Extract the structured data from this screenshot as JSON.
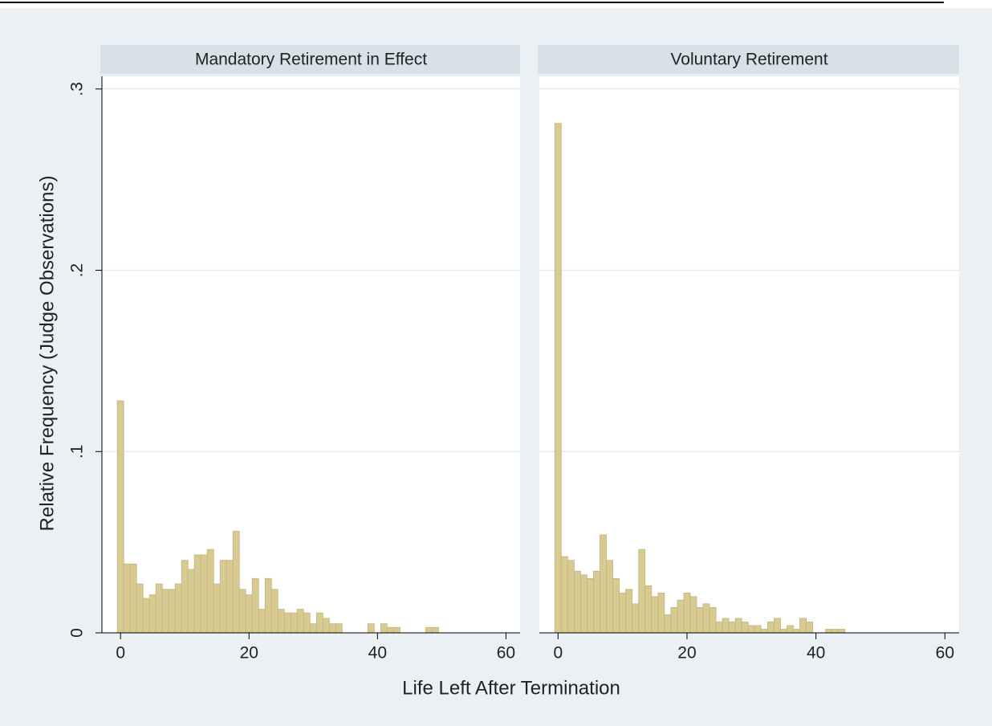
{
  "axis_titles": {
    "x": "Life Left After Termination",
    "y": "Relative Frequency (Judge Observations)"
  },
  "chart_data": [
    {
      "type": "histogram",
      "title": "Mandatory Retirement in Effect",
      "bins": [
        -0.5,
        0.5,
        1.5,
        2.5,
        3.5,
        4.5,
        5.5,
        6.5,
        7.5,
        8.5,
        9.5,
        10.5,
        11.5,
        12.5,
        13.5,
        14.5,
        15.5,
        16.5,
        17.5,
        18.5,
        19.5,
        20.5,
        21.5,
        22.5,
        23.5,
        24.5,
        25.5,
        26.5,
        27.5,
        28.5,
        29.5,
        30.5,
        31.5,
        32.5,
        33.5,
        34.5,
        35.5,
        36.5,
        37.5,
        38.5,
        39.5,
        40.5,
        41.5,
        42.5,
        43.5,
        44.5,
        45.5,
        46.5,
        47.5,
        48.5,
        49.5
      ],
      "values": [
        0.128,
        0.038,
        0.038,
        0.027,
        0.019,
        0.021,
        0.027,
        0.024,
        0.024,
        0.027,
        0.04,
        0.035,
        0.043,
        0.043,
        0.046,
        0.027,
        0.04,
        0.04,
        0.056,
        0.024,
        0.021,
        0.03,
        0.013,
        0.03,
        0.024,
        0.013,
        0.011,
        0.011,
        0.013,
        0.011,
        0.005,
        0.011,
        0.008,
        0.005,
        0.005,
        0,
        0,
        0,
        0,
        0.005,
        0,
        0.005,
        0.003,
        0.003,
        0,
        0,
        0,
        0,
        0.003,
        0.003
      ],
      "color": "#d8cb92",
      "xlim": [
        -2.9,
        62.2
      ],
      "xticks": [
        0,
        20,
        40,
        60
      ],
      "ylim": [
        0,
        0.307
      ],
      "yticks": [
        0,
        {
          "value": 0.1,
          "label": ".1"
        },
        {
          "value": 0.2,
          "label": ".2"
        },
        {
          "value": 0.3,
          "label": ".3"
        }
      ],
      "grid": true
    },
    {
      "type": "histogram",
      "title": "Voluntary Retirement",
      "bins": [
        -0.5,
        0.5,
        1.5,
        2.5,
        3.5,
        4.5,
        5.5,
        6.5,
        7.5,
        8.5,
        9.5,
        10.5,
        11.5,
        12.5,
        13.5,
        14.5,
        15.5,
        16.5,
        17.5,
        18.5,
        19.5,
        20.5,
        21.5,
        22.5,
        23.5,
        24.5,
        25.5,
        26.5,
        27.5,
        28.5,
        29.5,
        30.5,
        31.5,
        32.5,
        33.5,
        34.5,
        35.5,
        36.5,
        37.5,
        38.5,
        39.5,
        40.5,
        41.5,
        42.5,
        43.5,
        44.5
      ],
      "values": [
        0.281,
        0.042,
        0.04,
        0.034,
        0.032,
        0.03,
        0.034,
        0.054,
        0.04,
        0.03,
        0.022,
        0.024,
        0.016,
        0.046,
        0.026,
        0.02,
        0.022,
        0.01,
        0.014,
        0.018,
        0.022,
        0.02,
        0.014,
        0.016,
        0.014,
        0.006,
        0.008,
        0.006,
        0.008,
        0.006,
        0.004,
        0.004,
        0.002,
        0.006,
        0.008,
        0.002,
        0.004,
        0.002,
        0.008,
        0.006,
        0,
        0,
        0.002,
        0.002,
        0.002
      ],
      "color": "#d8cb92",
      "xlim": [
        -2.9,
        62.2
      ],
      "xticks": [
        0,
        20,
        40,
        60
      ],
      "ylim": [
        0,
        0.307
      ],
      "yticks": [
        0,
        0.1,
        0.2,
        0.3
      ],
      "grid": true
    }
  ]
}
